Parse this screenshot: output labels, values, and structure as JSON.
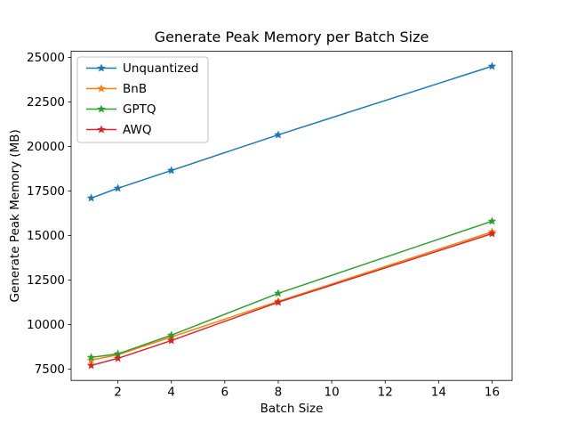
{
  "chart_data": {
    "type": "line",
    "title": "Generate Peak Memory per Batch Size",
    "xlabel": "Batch Size",
    "ylabel": "Generate Peak Memory (MB)",
    "x": [
      1,
      2,
      4,
      8,
      16
    ],
    "series": [
      {
        "name": "Unquantized",
        "color": "#1f77b4",
        "values": [
          17100,
          17650,
          18650,
          20650,
          24500
        ]
      },
      {
        "name": "BnB",
        "color": "#ff7f0e",
        "values": [
          8000,
          8300,
          9300,
          11300,
          15200
        ]
      },
      {
        "name": "GPTQ",
        "color": "#2ca02c",
        "values": [
          8150,
          8350,
          9400,
          11750,
          15800
        ]
      },
      {
        "name": "AWQ",
        "color": "#d62728",
        "values": [
          7700,
          8100,
          9100,
          11250,
          15100
        ]
      }
    ],
    "xlim": [
      0.25,
      16.75
    ],
    "ylim": [
      6860,
      25340
    ],
    "xticks": [
      2,
      4,
      6,
      8,
      10,
      12,
      14,
      16
    ],
    "yticks": [
      7500,
      10000,
      12500,
      15000,
      17500,
      20000,
      22500,
      25000
    ],
    "marker": "star",
    "grid": false,
    "legend_position": "upper left",
    "axis_color": "#000000",
    "background_color": "#ffffff"
  }
}
